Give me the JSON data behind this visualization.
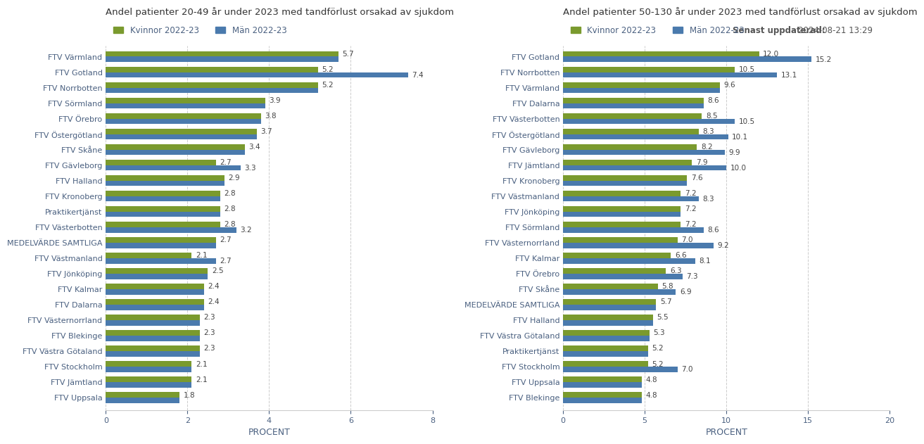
{
  "left_title": "Andel patienter 20-49 år under 2023 med tandförlust orsakad av sjukdom",
  "right_title": "Andel patienter 50-130 år under 2023 med tandförlust orsakad av sjukdom",
  "legend_kvinnor": "Kvinnor 2022-23",
  "legend_man": "Män 2022-23",
  "update_text": "Senast uppdaterad:",
  "update_date": "2024-08-21 13:29",
  "xlabel": "PROCENT",
  "color_kvinnor": "#7a9a2e",
  "color_man": "#4a7aad",
  "left_categories": [
    "FTV Värmland",
    "FTV Gotland",
    "FTV Norrbotten",
    "FTV Sörmland",
    "FTV Örebro",
    "FTV Östergötland",
    "FTV Skåne",
    "FTV Gävleborg",
    "FTV Halland",
    "FTV Kronoberg",
    "Praktikertjänst",
    "FTV Västerbotten",
    "MEDELVÄRDE SAMTLIGA",
    "FTV Västmanland",
    "FTV Jönköping",
    "FTV Kalmar",
    "FTV Dalarna",
    "FTV Västernorrland",
    "FTV Blekinge",
    "FTV Västra Götaland",
    "FTV Stockholm",
    "FTV Jämtland",
    "FTV Uppsala"
  ],
  "left_kvinnor": [
    5.7,
    5.2,
    5.2,
    3.9,
    3.8,
    3.7,
    3.4,
    2.7,
    2.9,
    2.8,
    2.8,
    2.8,
    2.7,
    2.1,
    2.5,
    2.4,
    2.4,
    2.3,
    2.3,
    2.3,
    2.1,
    2.1,
    1.8
  ],
  "left_man_val": [
    5.7,
    7.4,
    5.2,
    3.9,
    3.8,
    3.7,
    3.4,
    3.3,
    2.9,
    2.8,
    2.8,
    3.2,
    2.7,
    2.7,
    2.5,
    2.4,
    2.4,
    2.3,
    2.3,
    2.3,
    2.1,
    2.1,
    1.8
  ],
  "left_man_label": [
    null,
    7.4,
    null,
    null,
    null,
    null,
    null,
    3.3,
    null,
    null,
    null,
    3.2,
    null,
    2.7,
    null,
    null,
    null,
    null,
    null,
    null,
    null,
    null,
    null
  ],
  "left_xlim": [
    0,
    8
  ],
  "left_xticks": [
    0,
    2,
    4,
    6,
    8
  ],
  "right_categories": [
    "FTV Gotland",
    "FTV Norrbotten",
    "FTV Värmland",
    "FTV Dalarna",
    "FTV Västerbotten",
    "FTV Östergötland",
    "FTV Gävleborg",
    "FTV Jämtland",
    "FTV Kronoberg",
    "FTV Västmanland",
    "FTV Jönköping",
    "FTV Sörmland",
    "FTV Västernorrland",
    "FTV Kalmar",
    "FTV Örebro",
    "FTV Skåne",
    "MEDELVÄRDE SAMTLIGA",
    "FTV Halland",
    "FTV Västra Götaland",
    "Praktikertjänst",
    "FTV Stockholm",
    "FTV Uppsala",
    "FTV Blekinge"
  ],
  "right_kvinnor": [
    12.0,
    10.5,
    9.6,
    8.6,
    8.5,
    8.3,
    8.2,
    7.9,
    7.6,
    7.2,
    7.2,
    7.2,
    7.0,
    6.6,
    6.3,
    5.8,
    5.7,
    5.5,
    5.3,
    5.2,
    5.2,
    4.8,
    4.8
  ],
  "right_man_val": [
    15.2,
    13.1,
    9.6,
    8.6,
    10.5,
    10.1,
    9.9,
    10.0,
    7.6,
    8.3,
    7.2,
    8.6,
    9.2,
    8.1,
    7.3,
    6.9,
    5.7,
    5.5,
    5.3,
    5.2,
    7.0,
    4.8,
    4.8
  ],
  "right_man_label": [
    15.2,
    13.1,
    null,
    null,
    10.5,
    10.1,
    9.9,
    10.0,
    null,
    8.3,
    null,
    8.6,
    9.2,
    8.1,
    7.3,
    6.9,
    null,
    null,
    null,
    null,
    7.0,
    null,
    null
  ],
  "right_xlim": [
    0,
    20
  ],
  "right_xticks": [
    0,
    5,
    10,
    15,
    20
  ],
  "bar_height": 0.35,
  "background_color": "#ffffff",
  "grid_color": "#cccccc",
  "label_color": "#4a6080"
}
